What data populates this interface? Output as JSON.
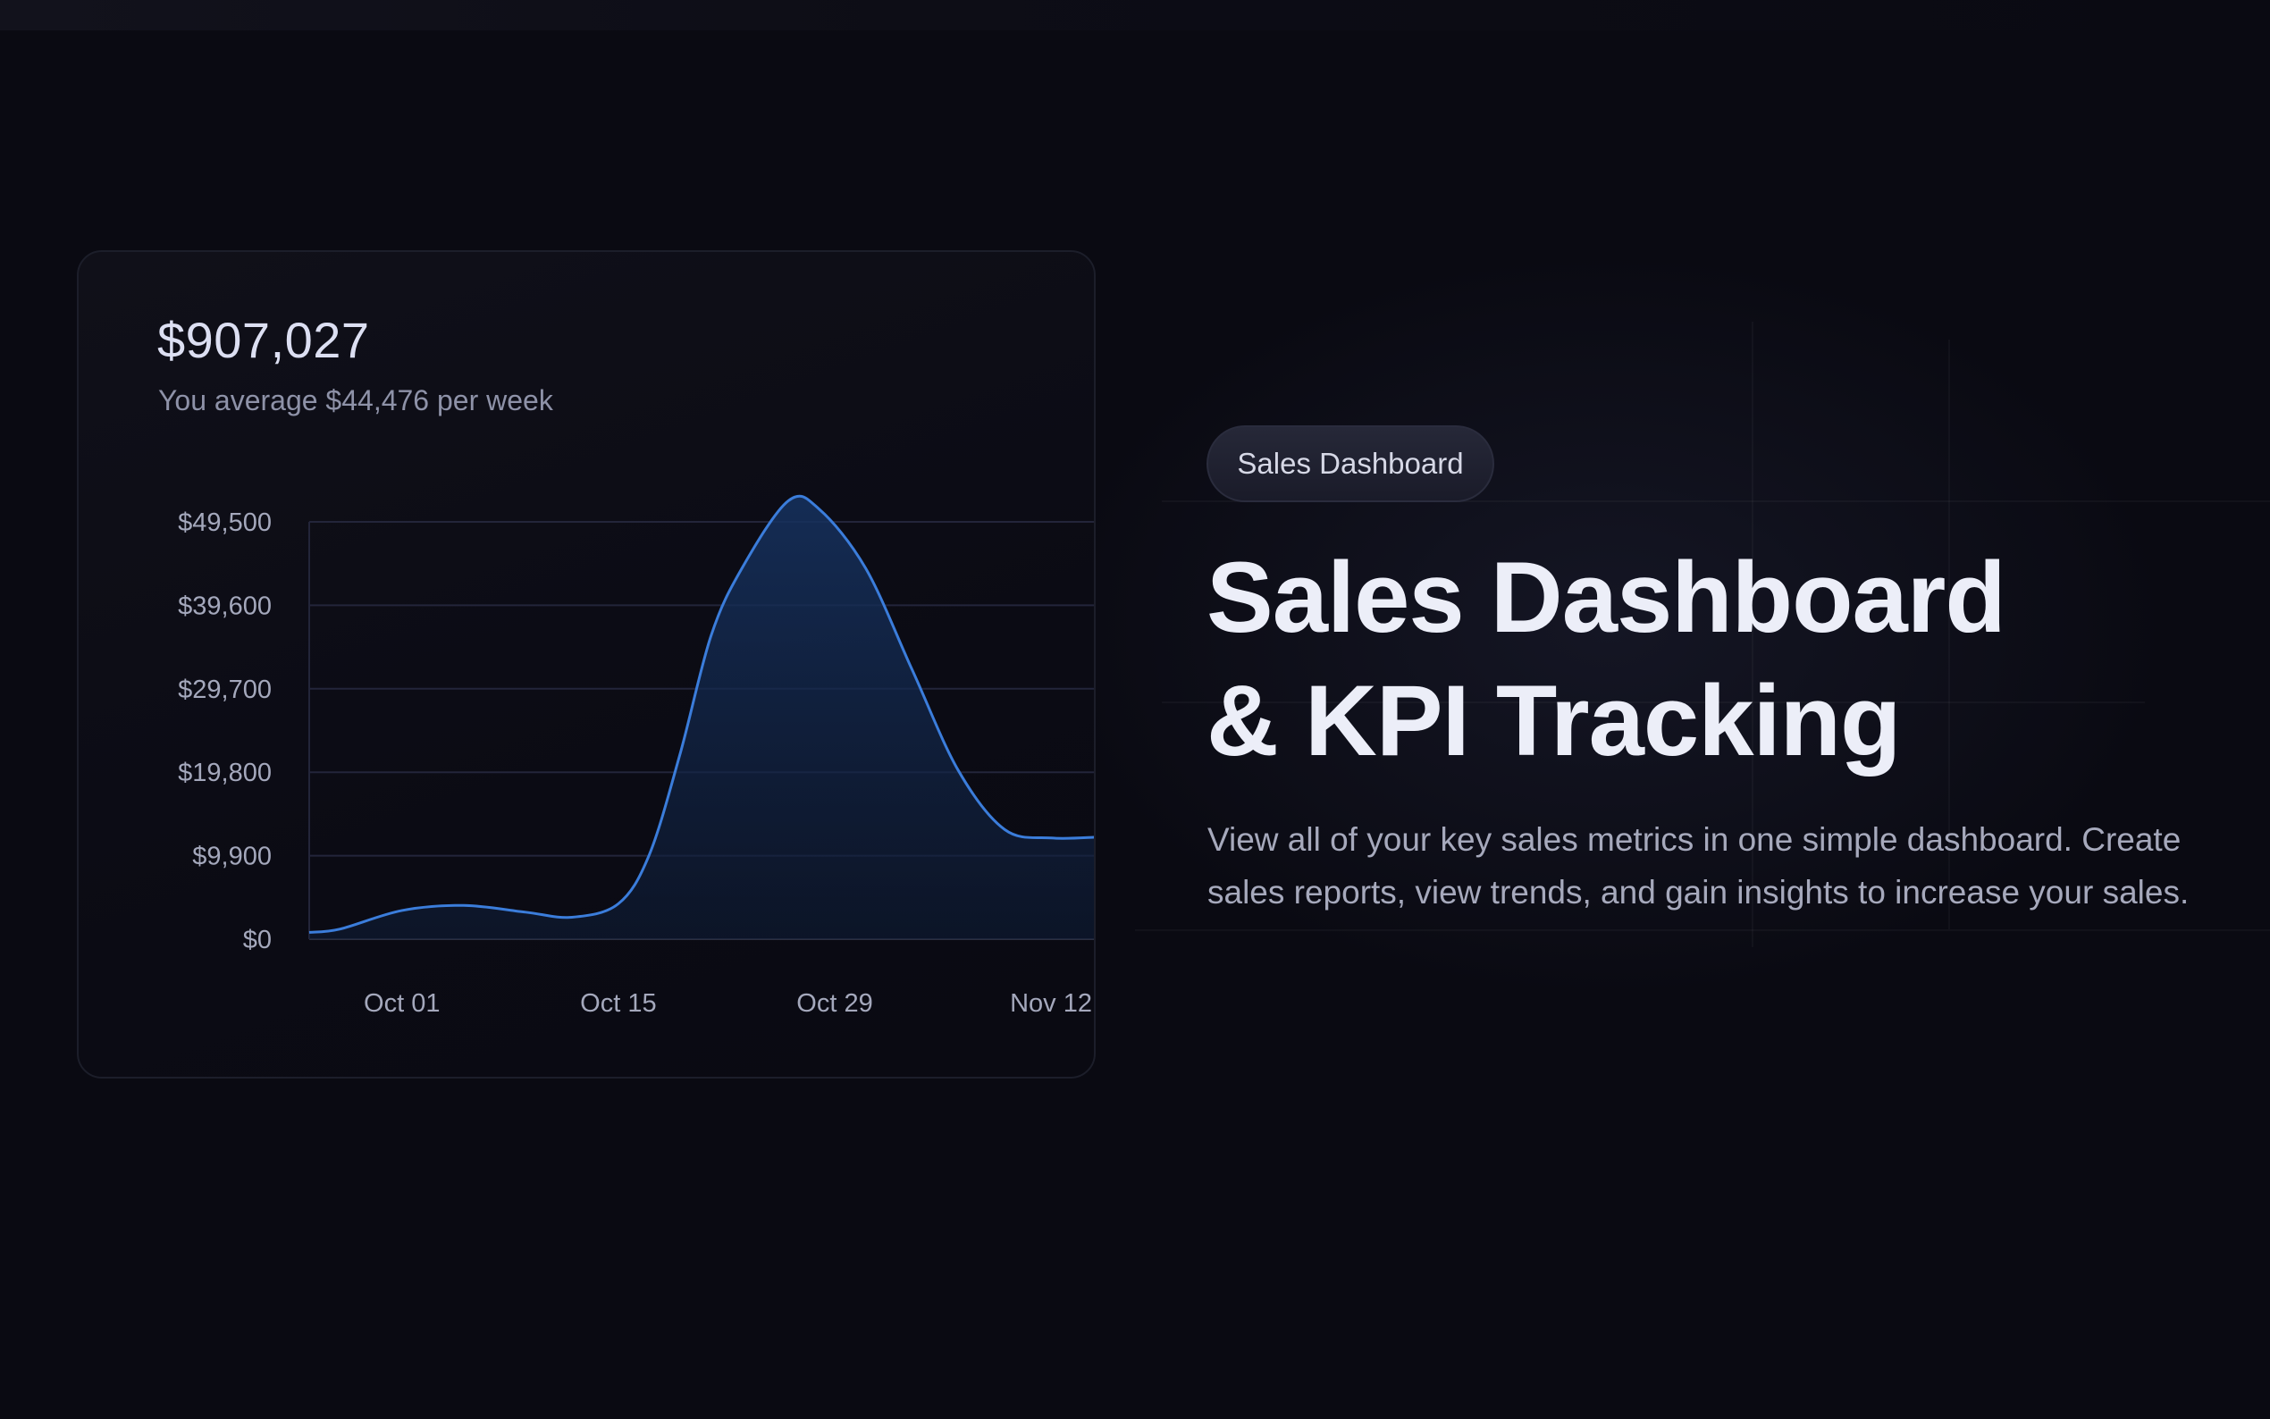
{
  "card": {
    "total": "$907,027",
    "average": "You average $44,476 per week"
  },
  "hero": {
    "badge": "Sales Dashboard",
    "title_line1": "Sales Dashboard",
    "title_line2": "& KPI Tracking",
    "description": "View all of your key sales metrics in one simple dashboard. Create sales reports, view trends, and gain insights to increase your sales."
  },
  "colors": {
    "line": "#3b7ddb",
    "fill": "#12294d"
  },
  "chart_data": {
    "type": "area",
    "title": "",
    "xlabel": "",
    "ylabel": "",
    "ylim": [
      0,
      49500
    ],
    "yticks": [
      {
        "value": 49500,
        "label": "$49,500"
      },
      {
        "value": 39600,
        "label": "$39,600"
      },
      {
        "value": 29700,
        "label": "$29,700"
      },
      {
        "value": 19800,
        "label": "$19,800"
      },
      {
        "value": 9900,
        "label": "$9,900"
      },
      {
        "value": 0,
        "label": "$0"
      }
    ],
    "xticks": [
      {
        "x": 6,
        "label": "Oct 01"
      },
      {
        "x": 20,
        "label": "Oct 15"
      },
      {
        "x": 34,
        "label": "Oct 29"
      },
      {
        "x": 48,
        "label": "Nov 12"
      }
    ],
    "xlim": [
      0,
      51
    ],
    "grid": true,
    "series": [
      {
        "points": [
          [
            0,
            800
          ],
          [
            2,
            1200
          ],
          [
            6,
            3400
          ],
          [
            10,
            4000
          ],
          [
            14,
            3200
          ],
          [
            17,
            2600
          ],
          [
            20,
            4200
          ],
          [
            22,
            10000
          ],
          [
            24,
            22000
          ],
          [
            26,
            36000
          ],
          [
            28,
            44000
          ],
          [
            31,
            52000
          ],
          [
            33,
            51000
          ],
          [
            36,
            44000
          ],
          [
            39,
            32000
          ],
          [
            42,
            20000
          ],
          [
            45,
            13000
          ],
          [
            48,
            12000
          ],
          [
            51,
            12100
          ]
        ]
      }
    ]
  }
}
